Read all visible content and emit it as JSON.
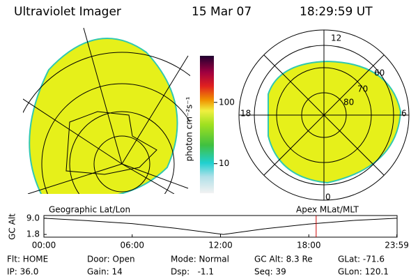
{
  "header": {
    "instrument": "Ultraviolet Imager",
    "date": "15 Mar 07",
    "time": "18:29:59 UT"
  },
  "colorbar": {
    "label": "photon cm⁻²s⁻¹",
    "scale": "log",
    "lim": [
      3.3,
      575
    ],
    "ticks": [
      10,
      100
    ]
  },
  "left_map": {
    "title": "Geographic Lat/Lon"
  },
  "right_map": {
    "title": "Apex MLat/MLT",
    "mlt_labels": [
      "12",
      "18",
      "6",
      "0"
    ],
    "mlat_labels": [
      "60",
      "70",
      "80"
    ]
  },
  "altitude_plot": {
    "ylabel": "GC Alt",
    "xlim": [
      0,
      24
    ],
    "ylim": [
      0.6,
      10.2
    ],
    "xticks": [
      {
        "value": 0,
        "label": "00:00"
      },
      {
        "value": 6,
        "label": "06:00"
      },
      {
        "value": 12,
        "label": "12:00"
      },
      {
        "value": 18,
        "label": "18:00"
      },
      {
        "value": 23.98,
        "label": "23:59"
      }
    ],
    "yticks": [
      {
        "value": 9,
        "label": "9.0"
      },
      1.8
    ],
    "x": [
      0,
      3,
      6,
      9,
      12.2,
      15,
      18,
      21,
      23.98
    ],
    "y": [
      9.0,
      7.9,
      6.6,
      4.5,
      1.8,
      4.3,
      6.4,
      8.0,
      9.0
    ],
    "current_time": 18.5,
    "current_color": "#cc0000"
  },
  "footer": {
    "rows": [
      [
        "Flt: HOME",
        "Door: Open",
        "Mode: Normal",
        "GC Alt: 8.3 Re",
        "GLat: -71.6"
      ],
      [
        "IP: 36.0",
        "Gain: 14",
        "Dsp:   -1.1",
        "Seq: 39",
        "GLon: 120.1"
      ]
    ]
  }
}
